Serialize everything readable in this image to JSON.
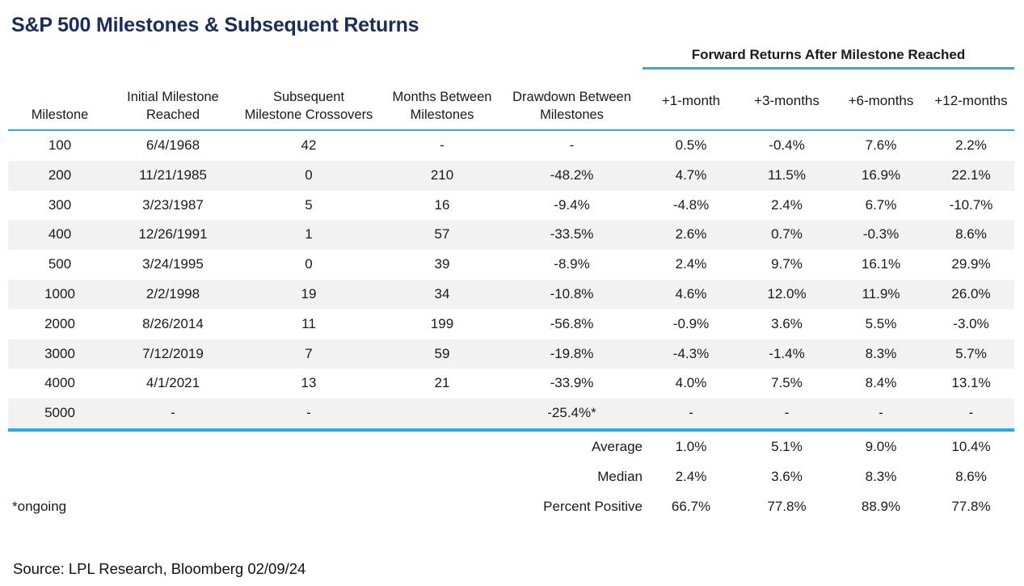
{
  "colors": {
    "accent_blue": "#29abe2",
    "title_navy": "#1a2c5b",
    "row_stripe": "#f2f2f2",
    "text": "#1a1a1a"
  },
  "chart_data": {
    "type": "table",
    "title": "S&P 500 Milestones & Subsequent Returns",
    "forward_header": "Forward Returns After Milestone Reached",
    "columns": [
      {
        "line1": "",
        "line2": "Milestone"
      },
      {
        "line1": "Initial Milestone",
        "line2": "Reached"
      },
      {
        "line1": "Subsequent",
        "line2": "Milestone Crossovers"
      },
      {
        "line1": "Months Between",
        "line2": "Milestones"
      },
      {
        "line1": "Drawdown Between",
        "line2": "Milestones"
      }
    ],
    "return_columns": [
      "+1-month",
      "+3-months",
      "+6-months",
      "+12-months"
    ],
    "rows": [
      [
        "100",
        "6/4/1968",
        "42",
        "-",
        "-",
        "0.5%",
        "-0.4%",
        "7.6%",
        "2.2%"
      ],
      [
        "200",
        "11/21/1985",
        "0",
        "210",
        "-48.2%",
        "4.7%",
        "11.5%",
        "16.9%",
        "22.1%"
      ],
      [
        "300",
        "3/23/1987",
        "5",
        "16",
        "-9.4%",
        "-4.8%",
        "2.4%",
        "6.7%",
        "-10.7%"
      ],
      [
        "400",
        "12/26/1991",
        "1",
        "57",
        "-33.5%",
        "2.6%",
        "0.7%",
        "-0.3%",
        "8.6%"
      ],
      [
        "500",
        "3/24/1995",
        "0",
        "39",
        "-8.9%",
        "2.4%",
        "9.7%",
        "16.1%",
        "29.9%"
      ],
      [
        "1000",
        "2/2/1998",
        "19",
        "34",
        "-10.8%",
        "4.6%",
        "12.0%",
        "11.9%",
        "26.0%"
      ],
      [
        "2000",
        "8/26/2014",
        "11",
        "199",
        "-56.8%",
        "-0.9%",
        "3.6%",
        "5.5%",
        "-3.0%"
      ],
      [
        "3000",
        "7/12/2019",
        "7",
        "59",
        "-19.8%",
        "-4.3%",
        "-1.4%",
        "8.3%",
        "5.7%"
      ],
      [
        "4000",
        "4/1/2021",
        "13",
        "21",
        "-33.9%",
        "4.0%",
        "7.5%",
        "8.4%",
        "13.1%"
      ],
      [
        "5000",
        "-",
        "-",
        "",
        "-25.4%*",
        "-",
        "-",
        "-",
        "-"
      ]
    ],
    "summary": [
      {
        "note": "",
        "label": "Average",
        "values": [
          "1.0%",
          "5.1%",
          "9.0%",
          "10.4%"
        ]
      },
      {
        "note": "",
        "label": "Median",
        "values": [
          "2.4%",
          "3.6%",
          "8.3%",
          "8.6%"
        ]
      },
      {
        "note": "*ongoing",
        "label": "Percent Positive",
        "values": [
          "66.7%",
          "77.8%",
          "88.9%",
          "77.8%"
        ]
      }
    ],
    "footnote": "*ongoing",
    "source": "Source: LPL Research, Bloomberg 02/09/24"
  }
}
